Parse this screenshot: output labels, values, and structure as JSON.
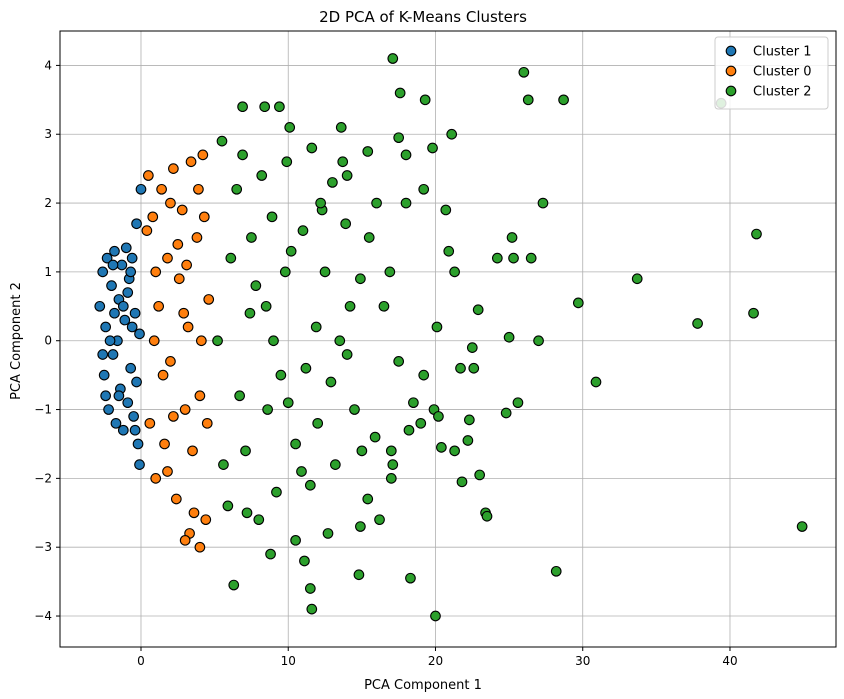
{
  "chart_data": {
    "type": "scatter",
    "title": "2D PCA of K-Means Clusters",
    "xlabel": "PCA Component 1",
    "ylabel": "PCA Component 2",
    "xlim": [
      -5.5,
      47.2
    ],
    "ylim": [
      -4.45,
      4.5
    ],
    "x_ticks": [
      0,
      10,
      20,
      30,
      40
    ],
    "y_ticks": [
      -4,
      -3,
      -2,
      -1,
      0,
      1,
      2,
      3,
      4
    ],
    "x_tick_labels": [
      "0",
      "10",
      "20",
      "30",
      "40"
    ],
    "y_tick_labels": [
      "−4",
      "−3",
      "−2",
      "−1",
      "0",
      "1",
      "2",
      "3",
      "4"
    ],
    "grid": true,
    "legend_position": "top-right",
    "series": [
      {
        "name": "Cluster 1",
        "color": "#1f77b4",
        "points": [
          [
            -2.8,
            0.5
          ],
          [
            -2.6,
            1.0
          ],
          [
            -2.5,
            -0.5
          ],
          [
            -2.4,
            0.2
          ],
          [
            -2.3,
            1.2
          ],
          [
            -2.2,
            -1.0
          ],
          [
            -2.0,
            0.8
          ],
          [
            -1.9,
            -0.2
          ],
          [
            -1.8,
            1.3
          ],
          [
            -1.7,
            -1.2
          ],
          [
            -1.6,
            0.0
          ],
          [
            -1.5,
            0.6
          ],
          [
            -1.4,
            -0.7
          ],
          [
            -1.3,
            1.1
          ],
          [
            -1.2,
            -1.3
          ],
          [
            -1.1,
            0.3
          ],
          [
            -1.0,
            1.35
          ],
          [
            -0.9,
            -0.9
          ],
          [
            -0.8,
            0.9
          ],
          [
            -0.7,
            -0.4
          ],
          [
            -0.6,
            1.2
          ],
          [
            -0.5,
            -1.1
          ],
          [
            -0.4,
            0.4
          ],
          [
            -0.3,
            1.7
          ],
          [
            -0.2,
            -1.5
          ],
          [
            -0.1,
            0.1
          ],
          [
            0.0,
            2.2
          ],
          [
            -0.1,
            -1.8
          ],
          [
            -0.6,
            0.2
          ],
          [
            -1.5,
            -0.8
          ],
          [
            -2.1,
            0.0
          ],
          [
            -0.9,
            0.7
          ],
          [
            -1.8,
            0.4
          ],
          [
            -2.4,
            -0.8
          ],
          [
            -1.2,
            0.5
          ],
          [
            -0.3,
            -0.6
          ],
          [
            -0.7,
            1.0
          ],
          [
            -2.6,
            -0.2
          ],
          [
            -1.9,
            1.1
          ],
          [
            -0.4,
            -1.3
          ]
        ]
      },
      {
        "name": "Cluster 0",
        "color": "#ff7f0e",
        "points": [
          [
            0.5,
            2.4
          ],
          [
            0.8,
            1.8
          ],
          [
            1.0,
            -2.0
          ],
          [
            1.2,
            0.5
          ],
          [
            1.4,
            2.2
          ],
          [
            1.6,
            -1.5
          ],
          [
            1.8,
            1.2
          ],
          [
            2.0,
            -0.3
          ],
          [
            2.2,
            2.5
          ],
          [
            2.4,
            -2.3
          ],
          [
            2.6,
            0.9
          ],
          [
            2.8,
            1.9
          ],
          [
            3.0,
            -1.0
          ],
          [
            3.2,
            0.2
          ],
          [
            3.4,
            2.6
          ],
          [
            3.6,
            -2.5
          ],
          [
            3.8,
            1.5
          ],
          [
            4.0,
            -0.8
          ],
          [
            4.2,
            2.7
          ],
          [
            4.4,
            -2.6
          ],
          [
            4.6,
            0.6
          ],
          [
            3.3,
            -2.8
          ],
          [
            4.0,
            -3.0
          ],
          [
            3.0,
            -2.9
          ],
          [
            1.0,
            1.0
          ],
          [
            2.0,
            2.0
          ],
          [
            0.6,
            -1.2
          ],
          [
            1.5,
            -0.5
          ],
          [
            2.5,
            1.4
          ],
          [
            3.5,
            -1.6
          ],
          [
            4.3,
            1.8
          ],
          [
            0.9,
            0.0
          ],
          [
            1.8,
            -1.9
          ],
          [
            2.9,
            0.4
          ],
          [
            3.9,
            2.2
          ],
          [
            4.5,
            -1.2
          ],
          [
            0.4,
            1.6
          ],
          [
            2.2,
            -1.1
          ],
          [
            3.1,
            1.1
          ],
          [
            4.1,
            0.0
          ]
        ]
      },
      {
        "name": "Cluster 2",
        "color": "#2ca02c",
        "points": [
          [
            17.1,
            4.1
          ],
          [
            26.0,
            3.9
          ],
          [
            17.6,
            3.6
          ],
          [
            26.3,
            3.5
          ],
          [
            28.7,
            3.5
          ],
          [
            19.3,
            3.5
          ],
          [
            39.4,
            3.45
          ],
          [
            6.9,
            3.4
          ],
          [
            9.4,
            3.4
          ],
          [
            8.4,
            3.4
          ],
          [
            13.6,
            3.1
          ],
          [
            10.1,
            3.1
          ],
          [
            21.1,
            3.0
          ],
          [
            17.5,
            2.95
          ],
          [
            11.6,
            2.8
          ],
          [
            15.4,
            2.75
          ],
          [
            19.8,
            2.8
          ],
          [
            18.0,
            2.7
          ],
          [
            13.7,
            2.6
          ],
          [
            14.0,
            2.4
          ],
          [
            19.2,
            2.2
          ],
          [
            27.3,
            2.0
          ],
          [
            18.0,
            2.0
          ],
          [
            20.7,
            1.9
          ],
          [
            12.3,
            1.9
          ],
          [
            41.8,
            1.55
          ],
          [
            25.2,
            1.5
          ],
          [
            24.2,
            1.2
          ],
          [
            25.3,
            1.2
          ],
          [
            26.5,
            1.2
          ],
          [
            20.9,
            1.3
          ],
          [
            21.3,
            1.0
          ],
          [
            33.7,
            0.9
          ],
          [
            29.7,
            0.55
          ],
          [
            22.9,
            0.45
          ],
          [
            37.8,
            0.25
          ],
          [
            41.6,
            0.4
          ],
          [
            25.0,
            0.05
          ],
          [
            27.0,
            0.0
          ],
          [
            20.1,
            0.2
          ],
          [
            22.5,
            -0.1
          ],
          [
            17.5,
            -0.3
          ],
          [
            21.7,
            -0.4
          ],
          [
            22.6,
            -0.4
          ],
          [
            19.2,
            -0.5
          ],
          [
            30.9,
            -0.6
          ],
          [
            18.5,
            -0.9
          ],
          [
            19.9,
            -1.0
          ],
          [
            20.2,
            -1.1
          ],
          [
            25.6,
            -0.9
          ],
          [
            24.8,
            -1.05
          ],
          [
            22.3,
            -1.15
          ],
          [
            19.0,
            -1.2
          ],
          [
            18.2,
            -1.3
          ],
          [
            22.2,
            -1.45
          ],
          [
            17.0,
            -1.6
          ],
          [
            20.4,
            -1.55
          ],
          [
            21.3,
            -1.6
          ],
          [
            17.1,
            -1.8
          ],
          [
            17.0,
            -2.0
          ],
          [
            23.0,
            -1.95
          ],
          [
            21.8,
            -2.05
          ],
          [
            15.4,
            -2.3
          ],
          [
            23.4,
            -2.5
          ],
          [
            23.5,
            -2.55
          ],
          [
            16.2,
            -2.6
          ],
          [
            14.9,
            -2.7
          ],
          [
            12.7,
            -2.8
          ],
          [
            11.1,
            -3.2
          ],
          [
            10.5,
            -2.9
          ],
          [
            11.5,
            -3.6
          ],
          [
            11.6,
            -3.9
          ],
          [
            14.8,
            -3.4
          ],
          [
            18.3,
            -3.45
          ],
          [
            28.2,
            -3.35
          ],
          [
            44.9,
            -2.7
          ],
          [
            6.3,
            -3.55
          ],
          [
            20.0,
            -4.0
          ],
          [
            7.2,
            -2.5
          ],
          [
            8.8,
            -3.1
          ],
          [
            5.5,
            2.9
          ],
          [
            6.5,
            2.2
          ],
          [
            7.5,
            1.5
          ],
          [
            8.5,
            0.5
          ],
          [
            9.5,
            -0.5
          ],
          [
            10.5,
            -1.5
          ],
          [
            11.5,
            -2.1
          ],
          [
            12.5,
            1.0
          ],
          [
            13.5,
            0.0
          ],
          [
            14.5,
            -1.0
          ],
          [
            15.5,
            1.5
          ],
          [
            16.5,
            0.5
          ],
          [
            5.6,
            -1.8
          ],
          [
            6.7,
            -0.8
          ],
          [
            7.8,
            0.8
          ],
          [
            8.9,
            1.8
          ],
          [
            9.9,
            2.6
          ],
          [
            10.9,
            -1.9
          ],
          [
            11.9,
            0.2
          ],
          [
            12.9,
            -0.6
          ],
          [
            13.9,
            1.7
          ],
          [
            14.9,
            0.9
          ],
          [
            15.9,
            -1.4
          ],
          [
            16.9,
            1.0
          ],
          [
            5.2,
            0.0
          ],
          [
            6.1,
            1.2
          ],
          [
            7.1,
            -1.6
          ],
          [
            8.2,
            2.4
          ],
          [
            9.2,
            -2.2
          ],
          [
            10.2,
            1.3
          ],
          [
            11.2,
            -0.4
          ],
          [
            12.2,
            2.0
          ],
          [
            13.2,
            -1.8
          ],
          [
            14.2,
            0.5
          ],
          [
            6.9,
            2.7
          ],
          [
            8.0,
            -2.6
          ],
          [
            9.0,
            0.0
          ],
          [
            10.0,
            -0.9
          ],
          [
            11.0,
            1.6
          ],
          [
            12.0,
            -1.2
          ],
          [
            13.0,
            2.3
          ],
          [
            14.0,
            -0.2
          ],
          [
            15.0,
            -1.6
          ],
          [
            16.0,
            2.0
          ],
          [
            7.4,
            0.4
          ],
          [
            8.6,
            -1.0
          ],
          [
            9.8,
            1.0
          ],
          [
            5.9,
            -2.4
          ]
        ]
      }
    ]
  }
}
